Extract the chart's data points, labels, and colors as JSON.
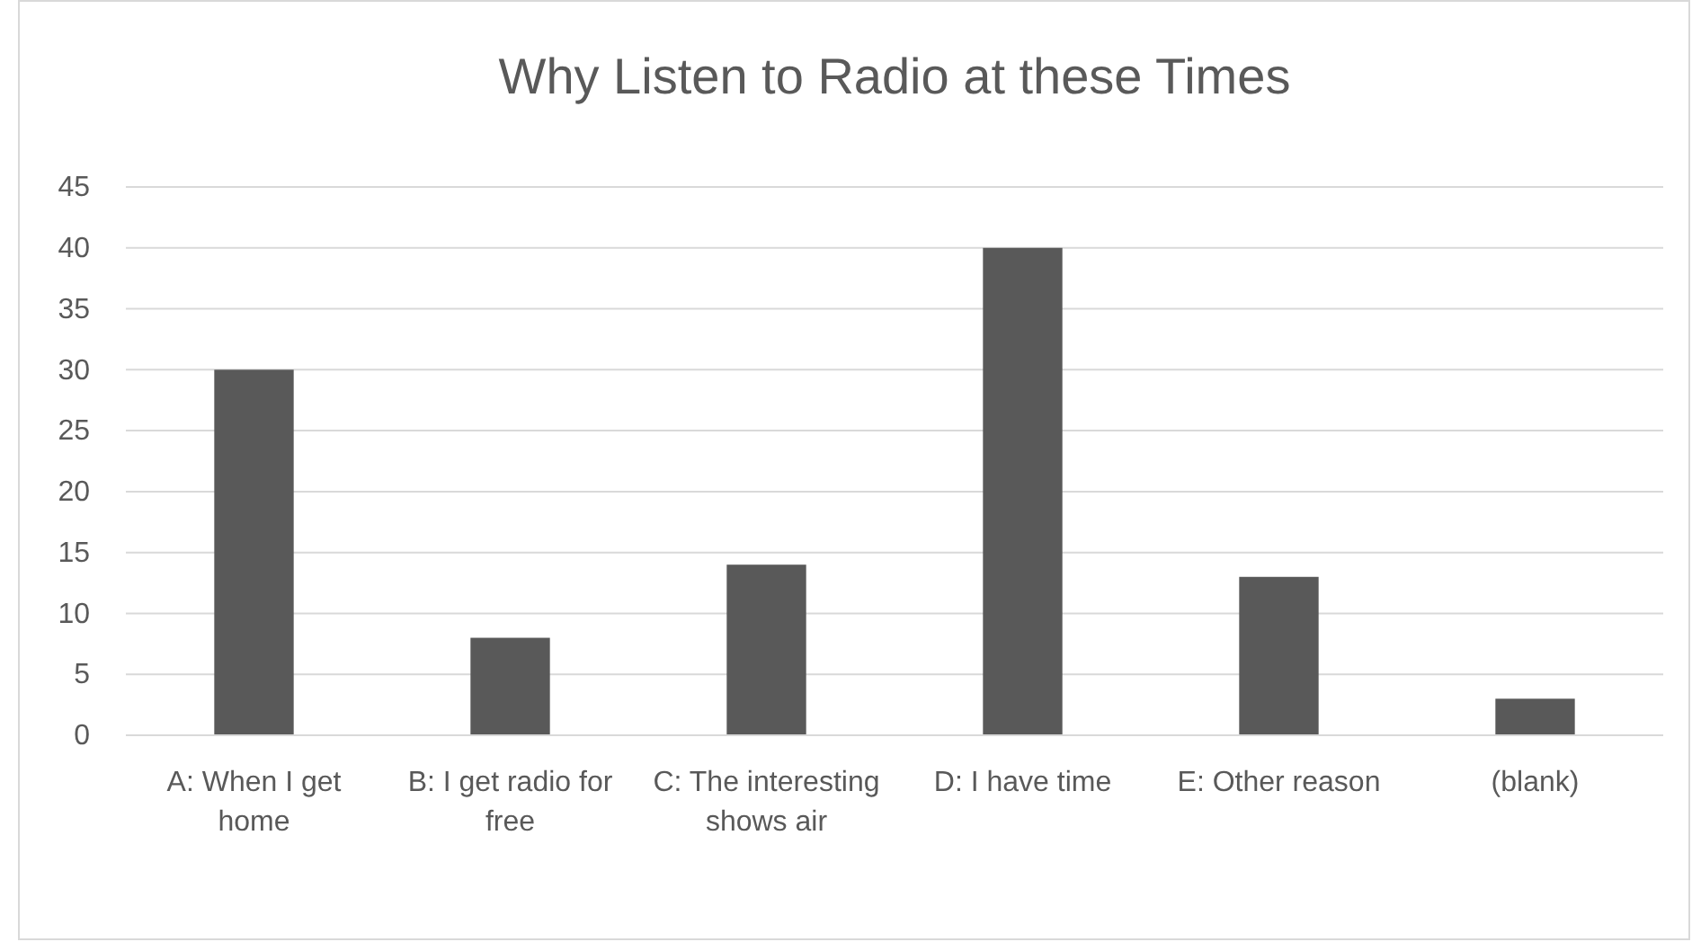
{
  "chart_data": {
    "type": "bar",
    "title": "Why Listen to Radio at these Times",
    "categories": [
      "A: When I get home",
      "B: I get radio for free",
      "C: The interesting shows air",
      "D: I have time",
      "E: Other reason",
      "(blank)"
    ],
    "values": [
      30,
      8,
      14,
      40,
      13,
      3
    ],
    "color": "#595959",
    "ylim": [
      0,
      45
    ],
    "yticks": [
      0,
      5,
      10,
      15,
      20,
      25,
      30,
      35,
      40,
      45
    ],
    "grid": "y"
  }
}
